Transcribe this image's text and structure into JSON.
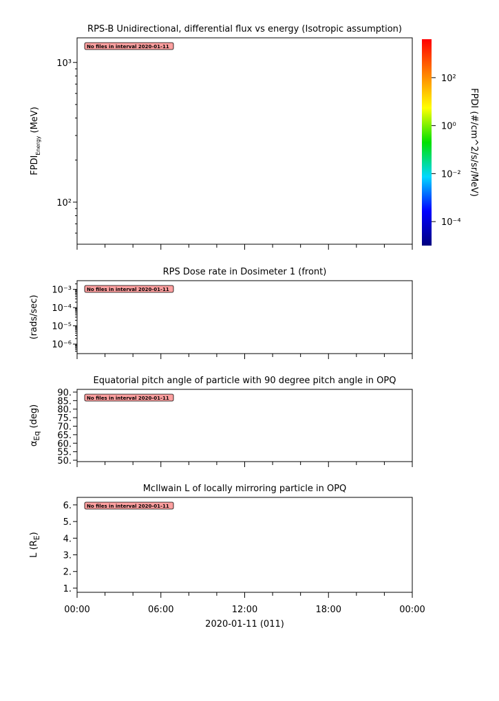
{
  "chart_data": [
    {
      "type": "spectrogram",
      "title": "RPS-B  Unidirectional, differential flux vs energy (Isotropic assumption)",
      "ylabel": {
        "main": "FPDI",
        "sub": "Energy",
        "tail": " (MeV)"
      },
      "annotation": "No files in interval 2020-01-11",
      "log_y": true,
      "ylim": [
        50,
        1500
      ],
      "yticks": [
        {
          "value": 100,
          "label": "10²"
        },
        {
          "value": 1000,
          "label": "10³"
        }
      ],
      "xlim": [
        0,
        24
      ],
      "xticks": [
        0,
        6,
        12,
        18,
        24
      ],
      "xminorticks": [
        2,
        4,
        8,
        10,
        14,
        16,
        20,
        22
      ],
      "colorbar": {
        "label": "FPDI (#/cm^2/s/sr/MeV)",
        "zlim": [
          1e-05,
          4000
        ],
        "zticks": [
          {
            "value": 0.0001,
            "label": "10⁻⁴"
          },
          {
            "value": 0.01,
            "label": "10⁻²"
          },
          {
            "value": 1,
            "label": "10⁰"
          },
          {
            "value": 100,
            "label": "10²"
          }
        ],
        "colors": [
          "#00007f",
          "#0000ff",
          "#00d8ff",
          "#00e000",
          "#ffff00",
          "#ff8000",
          "#ff0000"
        ]
      }
    },
    {
      "type": "line",
      "title": "RPS  Dose rate in Dosimeter 1 (front)",
      "ylabel": {
        "main": "(rads/sec)"
      },
      "annotation": "No files in interval 2020-01-11",
      "log_y": true,
      "ylim": [
        3e-07,
        0.003
      ],
      "yticks": [
        {
          "value": 1e-06,
          "label": "10⁻⁶"
        },
        {
          "value": 1e-05,
          "label": "10⁻⁵"
        },
        {
          "value": 0.0001,
          "label": "10⁻⁴"
        },
        {
          "value": 0.001,
          "label": "10⁻³"
        }
      ],
      "xlim": [
        0,
        24
      ],
      "xticks": [
        0,
        6,
        12,
        18,
        24
      ],
      "xminorticks": [
        2,
        4,
        8,
        10,
        14,
        16,
        20,
        22
      ]
    },
    {
      "type": "line",
      "title": "Equatorial pitch angle of particle with 90 degree pitch angle in OPQ",
      "ylabel": {
        "main": "α",
        "sub": "Eq",
        "tail": " (deg)"
      },
      "annotation": "No files in interval 2020-01-11",
      "ylim": [
        49.2,
        91.6
      ],
      "yticks": [
        {
          "value": 50,
          "label": "50."
        },
        {
          "value": 55,
          "label": "55."
        },
        {
          "value": 60,
          "label": "60."
        },
        {
          "value": 65,
          "label": "65."
        },
        {
          "value": 70,
          "label": "70."
        },
        {
          "value": 75,
          "label": "75."
        },
        {
          "value": 80,
          "label": "80."
        },
        {
          "value": 85,
          "label": "85."
        },
        {
          "value": 90,
          "label": "90."
        }
      ],
      "xlim": [
        0,
        24
      ],
      "xticks": [
        0,
        6,
        12,
        18,
        24
      ],
      "xminorticks": [
        2,
        4,
        8,
        10,
        14,
        16,
        20,
        22
      ]
    },
    {
      "type": "line",
      "title": "McIlwain L of locally mirroring particle in OPQ",
      "ylabel": {
        "main": "L (R",
        "sub": "E",
        "tail": ")"
      },
      "annotation": "No files in interval 2020-01-11",
      "ylim": [
        0.75,
        6.45
      ],
      "yticks": [
        {
          "value": 1,
          "label": "1."
        },
        {
          "value": 2,
          "label": "2."
        },
        {
          "value": 3,
          "label": "3."
        },
        {
          "value": 4,
          "label": "4."
        },
        {
          "value": 5,
          "label": "5."
        },
        {
          "value": 6,
          "label": "6."
        }
      ],
      "xlim": [
        0,
        24
      ],
      "xticks": [
        {
          "value": 0,
          "label": "00:00"
        },
        {
          "value": 6,
          "label": "06:00"
        },
        {
          "value": 12,
          "label": "12:00"
        },
        {
          "value": 18,
          "label": "18:00"
        },
        {
          "value": 24,
          "label": "00:00"
        }
      ],
      "xminorticks": [
        2,
        4,
        8,
        10,
        14,
        16,
        20,
        22
      ],
      "xlabel": "2020-01-11 (011)"
    }
  ]
}
